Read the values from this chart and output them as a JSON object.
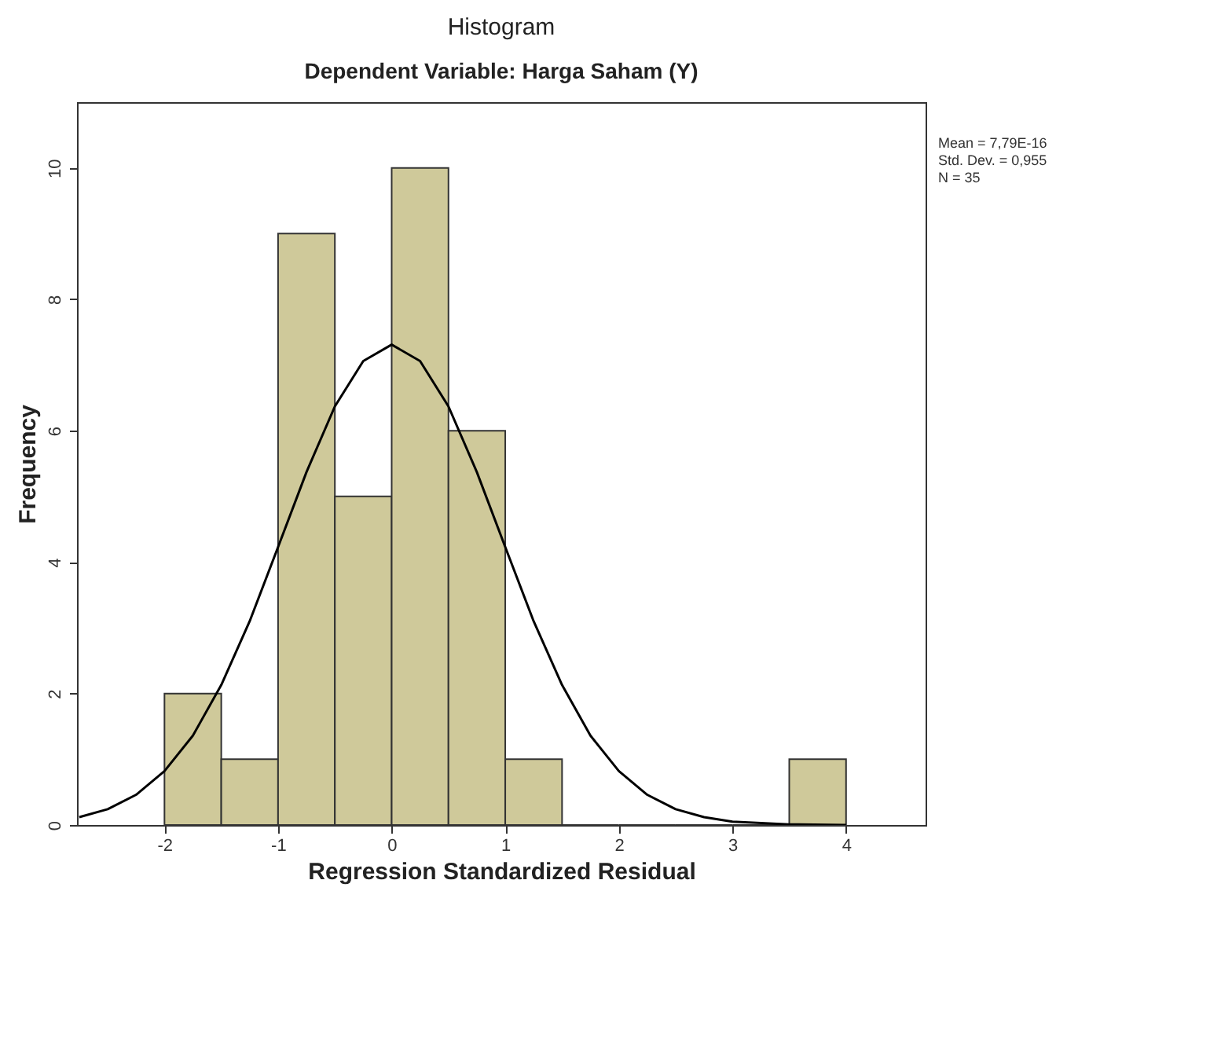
{
  "chart_data": {
    "type": "histogram",
    "title": "Histogram",
    "subtitle": "Dependent Variable: Harga Saham (Y)",
    "xlabel": "Regression Standardized Residual",
    "ylabel": "Frequency",
    "bins": [
      -2,
      -1.5,
      -1,
      -0.5,
      0,
      0.5,
      1,
      1.5,
      2,
      2.5,
      3,
      3.5,
      4
    ],
    "values": [
      2,
      1,
      9,
      5,
      10,
      6,
      1,
      0,
      0,
      0,
      0,
      1
    ],
    "color": "#cfc99a",
    "series": [
      {
        "type": "line",
        "color": "#000000",
        "x": [
          -2.75,
          -2.5,
          -2.25,
          -2,
          -1.75,
          -1.5,
          -1.25,
          -1,
          -0.75,
          -0.5,
          -0.25,
          0,
          0.25,
          0.5,
          0.75,
          1,
          1.25,
          1.5,
          1.75,
          2,
          2.25,
          2.5,
          2.75,
          3,
          3.5,
          4
        ],
        "values": [
          0.12,
          0.24,
          0.46,
          0.82,
          1.36,
          2.13,
          3.1,
          4.23,
          5.37,
          6.37,
          7.06,
          7.31,
          7.06,
          6.37,
          5.37,
          4.23,
          3.1,
          2.13,
          1.36,
          0.82,
          0.46,
          0.24,
          0.12,
          0.05,
          0.01,
          0
        ]
      }
    ],
    "xlim": [
      -2.77,
      4.7
    ],
    "xticks": [
      -2,
      -1,
      0,
      1,
      2,
      3,
      4
    ],
    "ylim": [
      0,
      11
    ],
    "yticks": [
      0,
      2,
      4,
      6,
      8,
      10
    ],
    "annotations": [
      "Mean = 7,79E-16",
      "Std. Dev. = 0,955",
      "N = 35"
    ]
  }
}
